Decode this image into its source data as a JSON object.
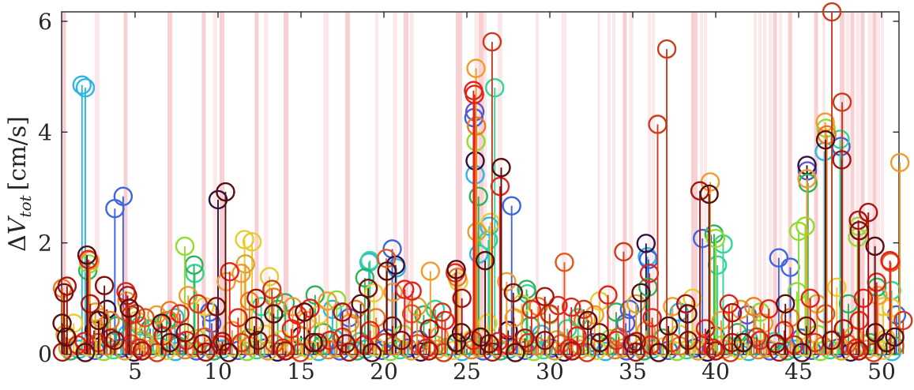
{
  "figure": {
    "ylabel_delta": "Δ",
    "ylabel_symbol": "V",
    "ylabel_sub": "tot",
    "ylabel_unit": " [cm/s]"
  },
  "chart_data": {
    "type": "stem",
    "title": "",
    "xlabel": "",
    "ylabel": "ΔV_tot [cm/s]",
    "xlim": [
      0.57,
      51.05
    ],
    "ylim": [
      0,
      6.17
    ],
    "xticks": [
      5,
      10,
      15,
      20,
      25,
      30,
      35,
      40,
      45,
      50
    ],
    "yticks": [
      0,
      2,
      4,
      6
    ],
    "grid": false,
    "legend": "none",
    "axis_color": "#262626",
    "band_color": "#f2a0a8",
    "band_alpha_light": 0.25,
    "band_alpha_dark": 0.5,
    "palette": [
      "#2cb5e8",
      "#3f64e0",
      "#5a55cc",
      "#33113f",
      "#2ed793",
      "#2eb457",
      "#8fdd2e",
      "#e8cb2d",
      "#d9a62a",
      "#f29a2b",
      "#ee7a1f",
      "#e6571d",
      "#e3231a",
      "#cd3b1c",
      "#a81511",
      "#7d100d",
      "#57100f"
    ],
    "bands": [
      [
        0.71,
        0.24,
        "d"
      ],
      [
        2.71,
        0.29,
        "l"
      ],
      [
        4.43,
        0.24,
        "d"
      ],
      [
        7.1,
        0.29,
        "d"
      ],
      [
        9.14,
        0.24,
        "d"
      ],
      [
        9.81,
        0.24,
        "l"
      ],
      [
        10.24,
        0.29,
        "d"
      ],
      [
        12.33,
        0.24,
        "d"
      ],
      [
        12.9,
        0.24,
        "l"
      ],
      [
        14.1,
        0.29,
        "d"
      ],
      [
        16.52,
        0.33,
        "l"
      ],
      [
        17.81,
        0.29,
        "d"
      ],
      [
        19.57,
        0.19,
        "l"
      ],
      [
        20.67,
        0.24,
        "l"
      ],
      [
        21.33,
        0.29,
        "d"
      ],
      [
        21.67,
        0.24,
        "l"
      ],
      [
        24.52,
        0.38,
        "d"
      ],
      [
        25.57,
        0.24,
        "l"
      ],
      [
        25.86,
        0.29,
        "d"
      ],
      [
        26.1,
        0.19,
        "l"
      ],
      [
        27.0,
        0.29,
        "l"
      ],
      [
        29.24,
        0.19,
        "l"
      ],
      [
        30.86,
        0.29,
        "l"
      ],
      [
        32.95,
        0.14,
        "l"
      ],
      [
        33.57,
        0.19,
        "l"
      ],
      [
        33.86,
        0.19,
        "l"
      ],
      [
        34.52,
        0.24,
        "d"
      ],
      [
        34.9,
        0.24,
        "l"
      ],
      [
        36.0,
        0.19,
        "l"
      ],
      [
        36.24,
        0.19,
        "l"
      ],
      [
        38.71,
        0.38,
        "d"
      ],
      [
        39.14,
        0.19,
        "l"
      ],
      [
        39.38,
        0.19,
        "l"
      ],
      [
        42.38,
        0.19,
        "l"
      ],
      [
        42.67,
        0.19,
        "l"
      ],
      [
        42.95,
        0.19,
        "l"
      ],
      [
        43.29,
        0.19,
        "l"
      ],
      [
        43.57,
        0.24,
        "d"
      ],
      [
        43.9,
        0.19,
        "l"
      ],
      [
        44.48,
        0.24,
        "d"
      ],
      [
        46.05,
        0.24,
        "d"
      ],
      [
        46.52,
        0.19,
        "l"
      ],
      [
        47.62,
        0.29,
        "d"
      ],
      [
        47.95,
        0.24,
        "l"
      ],
      [
        48.24,
        0.24,
        "d"
      ],
      [
        48.57,
        0.24,
        "l"
      ],
      [
        48.86,
        0.24,
        "d"
      ],
      [
        49.29,
        0.24,
        "l"
      ],
      [
        49.57,
        0.24,
        "d"
      ],
      [
        49.81,
        0.19,
        "l"
      ],
      [
        50.05,
        0.19,
        "l"
      ]
    ],
    "stems": [
      [
        0.62,
        1.18,
        10
      ],
      [
        0.72,
        1.1,
        15
      ],
      [
        0.9,
        1.22,
        14
      ],
      [
        0.6,
        0.55,
        16
      ],
      [
        0.78,
        0.35,
        9
      ],
      [
        1.8,
        4.85,
        0
      ],
      [
        2.0,
        4.8,
        0
      ],
      [
        2.1,
        1.78,
        16
      ],
      [
        2.18,
        1.7,
        12
      ],
      [
        2.22,
        1.62,
        6
      ],
      [
        2.28,
        1.68,
        9
      ],
      [
        2.15,
        1.5,
        5
      ],
      [
        2.3,
        0.9,
        14
      ],
      [
        2.6,
        0.75,
        8
      ],
      [
        2.8,
        0.6,
        16
      ],
      [
        3.15,
        1.23,
        15
      ],
      [
        3.3,
        0.8,
        3
      ],
      [
        3.5,
        0.6,
        10
      ],
      [
        3.78,
        2.62,
        1
      ],
      [
        4.28,
        2.84,
        1
      ],
      [
        4.45,
        1.12,
        12
      ],
      [
        4.55,
        1.05,
        14
      ],
      [
        4.5,
        0.95,
        8
      ],
      [
        4.65,
        0.82,
        16
      ],
      [
        4.75,
        0.7,
        13
      ],
      [
        5.1,
        0.6,
        7
      ],
      [
        5.3,
        0.5,
        4
      ],
      [
        5.6,
        0.65,
        11
      ],
      [
        5.9,
        0.45,
        2
      ],
      [
        6.3,
        0.7,
        9
      ],
      [
        6.6,
        0.55,
        16
      ],
      [
        6.9,
        0.6,
        5
      ],
      [
        7.1,
        0.78,
        10
      ],
      [
        7.4,
        0.65,
        0
      ],
      [
        7.7,
        0.72,
        12
      ],
      [
        8.0,
        1.94,
        6
      ],
      [
        8.2,
        1.05,
        9
      ],
      [
        8.55,
        1.6,
        5
      ],
      [
        8.6,
        1.45,
        4
      ],
      [
        8.8,
        0.9,
        13
      ],
      [
        9.2,
        0.85,
        7
      ],
      [
        9.5,
        0.75,
        1
      ],
      [
        9.9,
        0.85,
        15
      ],
      [
        10.0,
        2.78,
        3
      ],
      [
        10.45,
        2.92,
        16
      ],
      [
        10.7,
        1.48,
        12
      ],
      [
        10.5,
        1.3,
        9
      ],
      [
        11.4,
        1.45,
        9
      ],
      [
        11.6,
        2.06,
        7
      ],
      [
        11.65,
        1.62,
        8
      ],
      [
        11.9,
        0.95,
        10
      ],
      [
        12.05,
        2.02,
        7
      ],
      [
        12.3,
        1.0,
        14
      ],
      [
        12.6,
        0.85,
        4
      ],
      [
        13.1,
        1.39,
        7
      ],
      [
        13.25,
        1.16,
        13
      ],
      [
        13.35,
        1.02,
        10
      ],
      [
        13.6,
        0.8,
        5
      ],
      [
        14.05,
        0.92,
        5
      ],
      [
        14.5,
        0.85,
        9
      ],
      [
        14.8,
        0.7,
        12
      ],
      [
        15.2,
        0.75,
        16
      ],
      [
        15.55,
        0.82,
        12
      ],
      [
        15.85,
        1.06,
        5
      ],
      [
        16.1,
        0.7,
        7
      ],
      [
        16.6,
        0.95,
        9
      ],
      [
        16.9,
        0.8,
        0
      ],
      [
        17.15,
        0.97,
        6
      ],
      [
        17.5,
        0.75,
        14
      ],
      [
        17.9,
        0.65,
        1
      ],
      [
        18.3,
        0.8,
        10
      ],
      [
        18.6,
        0.9,
        16
      ],
      [
        18.85,
        1.37,
        5
      ],
      [
        19.05,
        1.18,
        15
      ],
      [
        19.1,
        1.65,
        0
      ],
      [
        19.15,
        1.68,
        4
      ],
      [
        19.4,
        1.1,
        7
      ],
      [
        20.15,
        1.72,
        11
      ],
      [
        20.18,
        1.49,
        16
      ],
      [
        20.5,
        1.89,
        1
      ],
      [
        20.55,
        1.11,
        9
      ],
      [
        20.7,
        1.6,
        3
      ],
      [
        20.75,
        1.55,
        0
      ],
      [
        21.25,
        1.16,
        12
      ],
      [
        21.7,
        1.13,
        12
      ],
      [
        22.0,
        0.85,
        8
      ],
      [
        22.4,
        0.7,
        5
      ],
      [
        22.8,
        1.49,
        9
      ],
      [
        23.1,
        0.8,
        4
      ],
      [
        23.5,
        0.75,
        13
      ],
      [
        24.3,
        1.46,
        12
      ],
      [
        24.36,
        1.52,
        16
      ],
      [
        24.42,
        1.38,
        10
      ],
      [
        24.5,
        1.3,
        7
      ],
      [
        24.7,
        1.0,
        14
      ],
      [
        25.4,
        4.75,
        12
      ],
      [
        25.46,
        4.68,
        12
      ],
      [
        25.55,
        5.15,
        9
      ],
      [
        25.42,
        4.26,
        1
      ],
      [
        25.48,
        4.37,
        2
      ],
      [
        25.58,
        4.11,
        10
      ],
      [
        25.55,
        3.83,
        6
      ],
      [
        25.5,
        3.48,
        3
      ],
      [
        25.5,
        3.23,
        0
      ],
      [
        25.7,
        2.84,
        5
      ],
      [
        25.72,
        1.8,
        0
      ],
      [
        25.6,
        2.2,
        8
      ],
      [
        26.1,
        1.68,
        16
      ],
      [
        26.35,
        2.3,
        0
      ],
      [
        26.42,
        2.37,
        7
      ],
      [
        26.3,
        2.05,
        4
      ],
      [
        26.52,
        5.63,
        13
      ],
      [
        26.68,
        4.8,
        4
      ],
      [
        27.0,
        3.02,
        12
      ],
      [
        27.07,
        3.36,
        16
      ],
      [
        27.7,
        2.67,
        1
      ],
      [
        27.4,
        1.3,
        9
      ],
      [
        27.8,
        1.1,
        15
      ],
      [
        28.3,
        0.9,
        7
      ],
      [
        28.6,
        1.16,
        5
      ],
      [
        28.65,
        1.08,
        4
      ],
      [
        28.9,
        0.8,
        12
      ],
      [
        29.3,
        0.85,
        10
      ],
      [
        29.7,
        1.03,
        14
      ],
      [
        30.0,
        0.7,
        6
      ],
      [
        30.5,
        0.87,
        12
      ],
      [
        30.88,
        1.65,
        11
      ],
      [
        31.3,
        0.84,
        12
      ],
      [
        31.7,
        0.65,
        4
      ],
      [
        32.05,
        0.8,
        13
      ],
      [
        32.3,
        0.6,
        16
      ],
      [
        32.7,
        0.7,
        9
      ],
      [
        33.0,
        0.95,
        7
      ],
      [
        33.5,
        1.06,
        12
      ],
      [
        34.0,
        0.75,
        5
      ],
      [
        34.45,
        1.84,
        13
      ],
      [
        34.8,
        0.8,
        1
      ],
      [
        35.2,
        0.9,
        8
      ],
      [
        35.5,
        1.1,
        16
      ],
      [
        35.8,
        1.99,
        3
      ],
      [
        35.88,
        1.75,
        0
      ],
      [
        35.95,
        1.7,
        1
      ],
      [
        36.0,
        1.45,
        12
      ],
      [
        35.92,
        1.2,
        5
      ],
      [
        36.5,
        4.14,
        13
      ],
      [
        37.05,
        5.5,
        13
      ],
      [
        37.4,
        0.85,
        9
      ],
      [
        37.8,
        0.75,
        0
      ],
      [
        38.2,
        0.9,
        14
      ],
      [
        38.6,
        1.0,
        7
      ],
      [
        39.05,
        2.94,
        14
      ],
      [
        39.6,
        2.88,
        16
      ],
      [
        39.67,
        3.1,
        9
      ],
      [
        39.2,
        2.08,
        1
      ],
      [
        39.9,
        2.16,
        5
      ],
      [
        40.0,
        2.08,
        6
      ],
      [
        40.1,
        1.6,
        4
      ],
      [
        40.45,
        1.98,
        4
      ],
      [
        40.8,
        0.9,
        12
      ],
      [
        41.0,
        0.74,
        14
      ],
      [
        41.5,
        0.8,
        9
      ],
      [
        41.9,
        0.7,
        2
      ],
      [
        42.3,
        0.85,
        10
      ],
      [
        42.7,
        0.75,
        6
      ],
      [
        43.2,
        0.81,
        12
      ],
      [
        43.8,
        1.73,
        1
      ],
      [
        44.2,
        0.9,
        16
      ],
      [
        44.5,
        1.56,
        1
      ],
      [
        44.9,
        1.12,
        6
      ],
      [
        45.0,
        2.21,
        6
      ],
      [
        45.4,
        2.3,
        6
      ],
      [
        45.5,
        3.4,
        3
      ],
      [
        45.52,
        3.3,
        2
      ],
      [
        45.5,
        3.16,
        9
      ],
      [
        45.56,
        3.08,
        5
      ],
      [
        45.7,
        1.0,
        12
      ],
      [
        46.1,
        0.9,
        8
      ],
      [
        46.6,
        4.18,
        9
      ],
      [
        46.65,
        4.07,
        6
      ],
      [
        46.62,
        3.86,
        16
      ],
      [
        46.7,
        3.95,
        10
      ],
      [
        46.55,
        3.65,
        0
      ],
      [
        47.0,
        6.17,
        13
      ],
      [
        47.5,
        3.87,
        4
      ],
      [
        47.55,
        3.74,
        1
      ],
      [
        47.6,
        3.5,
        14
      ],
      [
        47.62,
        4.54,
        13
      ],
      [
        47.3,
        1.2,
        7
      ],
      [
        48.0,
        0.9,
        5
      ],
      [
        48.55,
        2.1,
        6
      ],
      [
        48.6,
        2.3,
        6
      ],
      [
        48.6,
        2.41,
        14
      ],
      [
        48.65,
        2.22,
        15
      ],
      [
        48.9,
        1.0,
        12
      ],
      [
        49.2,
        2.55,
        14
      ],
      [
        49.6,
        1.94,
        16
      ],
      [
        49.7,
        1.29,
        12
      ],
      [
        49.72,
        1.2,
        5
      ],
      [
        49.78,
        1.05,
        9
      ],
      [
        50.1,
        0.85,
        7
      ],
      [
        50.5,
        1.68,
        12
      ],
      [
        50.55,
        1.65,
        11
      ],
      [
        50.6,
        1.14,
        4
      ],
      [
        50.58,
        0.83,
        7
      ],
      [
        50.9,
        0.7,
        1
      ],
      [
        51.1,
        3.45,
        9
      ],
      [
        51.3,
        0.6,
        13
      ]
    ],
    "background_stems": {
      "floor": {
        "x_start": 0.62,
        "x_step": 0.27,
        "count": 187,
        "heights": [
          0.03,
          0.1,
          0.05,
          0.16,
          0.08,
          0.02,
          0.12,
          0.06,
          0.2,
          0.04,
          0.14,
          0.07,
          0.24,
          0.1,
          0.05,
          0.18
        ],
        "colors": [
          14,
          9,
          5,
          12,
          0,
          16,
          7,
          1,
          13,
          6,
          10,
          4,
          15,
          2,
          8,
          11,
          3,
          12,
          14,
          6,
          9,
          13,
          4,
          7,
          16,
          0,
          5,
          10,
          12,
          8,
          1,
          15
        ],
        "x_jitter": [
          0,
          0.06,
          -0.05,
          0.1,
          -0.08,
          0.03,
          -0.02,
          0.08
        ]
      },
      "mid": {
        "x_start": 0.85,
        "x_step": 0.52,
        "count": 97,
        "heights": [
          0.3,
          0.55,
          0.22,
          0.42,
          0.65,
          0.28,
          0.5,
          0.35,
          0.72,
          0.25,
          0.45,
          0.32,
          0.6,
          0.2,
          0.38,
          0.27
        ],
        "colors": [
          16,
          7,
          12,
          3,
          9,
          14,
          5,
          0,
          13,
          8,
          4,
          12,
          10,
          1,
          15,
          6,
          11,
          2,
          14,
          9,
          12,
          5,
          16,
          7
        ],
        "x_jitter": [
          0.02,
          -0.07,
          0.05,
          0.12,
          -0.04,
          0.09,
          -0.1,
          0.04
        ]
      }
    }
  }
}
